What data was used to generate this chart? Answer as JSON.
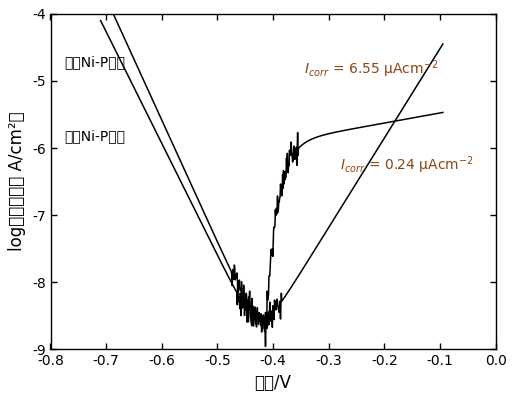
{
  "xlabel": "电压/V",
  "ylabel": "log（电流密度 A/cm²）",
  "xlim": [
    -0.8,
    0.0
  ],
  "ylim": [
    -9,
    -4
  ],
  "xticks": [
    -0.8,
    -0.7,
    -0.6,
    -0.5,
    -0.4,
    -0.3,
    -0.2,
    -0.1,
    0.0
  ],
  "yticks": [
    -9,
    -8,
    -7,
    -6,
    -5,
    -4
  ],
  "label_blank": "空白Ni-P镀层",
  "label_passivated": "钝化Ni-P镀层",
  "annotation_blank": "$I_{corr}$ = 6.55 μAcm$^{-2}$",
  "annotation_passivated": "$I_{corr}$ = 0.24 μAcm$^{-2}$",
  "annotation_color": "#8B4513",
  "line_color": "#000000",
  "background_color": "#ffffff",
  "fontsize_labels": 12,
  "fontsize_ticks": 10,
  "fontsize_annotation": 10,
  "fontsize_curve_label": 10,
  "ecorr_blank": -0.425,
  "ecorr_passivated": -0.415,
  "logI_min_blank": -8.85,
  "logI_min_pass": -8.95,
  "ba_blank": 0.075,
  "bc_blank": 0.06,
  "ba_pass": 0.2,
  "bc_pass": 0.055
}
